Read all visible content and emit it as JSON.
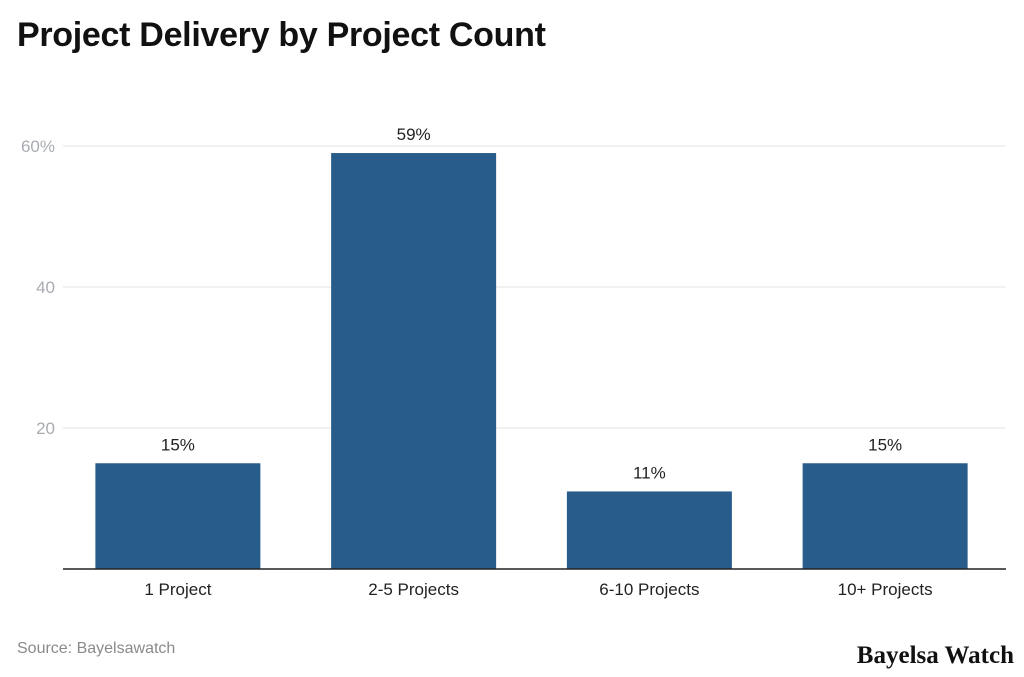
{
  "chart_data": {
    "type": "bar",
    "title": "Project Delivery by Project Count",
    "categories": [
      "1 Project",
      "2-5 Projects",
      "6-10 Projects",
      "10+ Projects"
    ],
    "values": [
      15,
      59,
      11,
      15
    ],
    "data_labels": [
      "15%",
      "59%",
      "11%",
      "15%"
    ],
    "y_ticks": [
      {
        "value": 20,
        "label": "20"
      },
      {
        "value": 40,
        "label": "40"
      },
      {
        "value": 60,
        "label": "60%"
      }
    ],
    "ylim": [
      0,
      60
    ],
    "grid": true,
    "xlabel": "",
    "ylabel": "",
    "bar_color": "#285d8b"
  },
  "footer": {
    "source": "Source: Bayelsawatch",
    "logo": "Bayelsa Watch"
  }
}
